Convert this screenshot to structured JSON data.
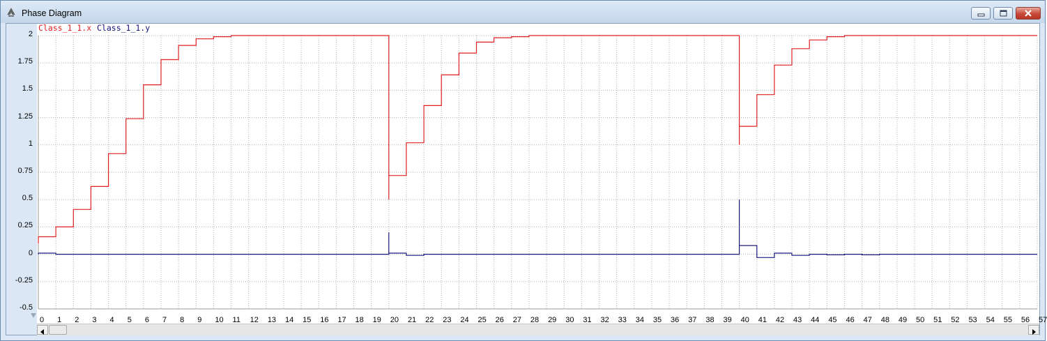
{
  "window": {
    "title": "Phase Diagram",
    "buttons": {
      "minimize": "minimize",
      "maximize": "maximize",
      "close": "close"
    }
  },
  "legend": {
    "series_x": "Class_1_1.x",
    "series_y": "Class_1_1.y"
  },
  "colors": {
    "series_x": "#e02020",
    "series_y": "#1a1a80",
    "grid": "#b0b0b0"
  },
  "chart_data": {
    "type": "line",
    "step": true,
    "ylim": [
      -0.5,
      2
    ],
    "xlim": [
      0,
      57
    ],
    "grid": true,
    "legend_position": "top-left",
    "yticks": [
      "2",
      "1.75",
      "1.5",
      "1.25",
      "1",
      "0.75",
      "0.5",
      "0.25",
      "0",
      "-0.25",
      "-0.5"
    ],
    "xticks": [
      "0",
      "1",
      "2",
      "3",
      "4",
      "5",
      "6",
      "7",
      "8",
      "9",
      "10",
      "11",
      "12",
      "13",
      "14",
      "15",
      "16",
      "17",
      "18",
      "19",
      "20",
      "21",
      "22",
      "23",
      "24",
      "25",
      "26",
      "27",
      "28",
      "29",
      "30",
      "31",
      "32",
      "33",
      "34",
      "35",
      "36",
      "37",
      "38",
      "39",
      "40",
      "41",
      "42",
      "43",
      "44",
      "45",
      "46",
      "47",
      "48",
      "49",
      "50",
      "51",
      "52",
      "53",
      "54",
      "55",
      "56",
      "57"
    ],
    "series": [
      {
        "name": "Class_1_1.x",
        "points": [
          [
            0,
            0.1
          ],
          [
            0,
            0.16
          ],
          [
            1,
            0.16
          ],
          [
            1,
            0.25
          ],
          [
            2,
            0.25
          ],
          [
            2,
            0.41
          ],
          [
            3,
            0.41
          ],
          [
            3,
            0.62
          ],
          [
            4,
            0.62
          ],
          [
            4,
            0.92
          ],
          [
            5,
            0.92
          ],
          [
            5,
            1.24
          ],
          [
            6,
            1.24
          ],
          [
            6,
            1.55
          ],
          [
            7,
            1.55
          ],
          [
            7,
            1.78
          ],
          [
            8,
            1.78
          ],
          [
            8,
            1.91
          ],
          [
            9,
            1.91
          ],
          [
            9,
            1.97
          ],
          [
            10,
            1.97
          ],
          [
            10,
            1.99
          ],
          [
            11,
            1.99
          ],
          [
            11,
            2.0
          ],
          [
            20,
            2.0
          ],
          [
            20,
            0.5
          ],
          [
            20,
            0.72
          ],
          [
            21,
            0.72
          ],
          [
            21,
            1.02
          ],
          [
            22,
            1.02
          ],
          [
            22,
            1.36
          ],
          [
            23,
            1.36
          ],
          [
            23,
            1.64
          ],
          [
            24,
            1.64
          ],
          [
            24,
            1.84
          ],
          [
            25,
            1.84
          ],
          [
            25,
            1.94
          ],
          [
            26,
            1.94
          ],
          [
            26,
            1.98
          ],
          [
            27,
            1.98
          ],
          [
            27,
            1.99
          ],
          [
            28,
            1.99
          ],
          [
            28,
            2.0
          ],
          [
            40,
            2.0
          ],
          [
            40,
            1.0
          ],
          [
            40,
            1.17
          ],
          [
            41,
            1.17
          ],
          [
            41,
            1.46
          ],
          [
            42,
            1.46
          ],
          [
            42,
            1.73
          ],
          [
            43,
            1.73
          ],
          [
            43,
            1.88
          ],
          [
            44,
            1.88
          ],
          [
            44,
            1.96
          ],
          [
            45,
            1.96
          ],
          [
            45,
            1.99
          ],
          [
            46,
            1.99
          ],
          [
            46,
            2.0
          ],
          [
            57,
            2.0
          ]
        ]
      },
      {
        "name": "Class_1_1.y",
        "points": [
          [
            0,
            0.0
          ],
          [
            0,
            0.01
          ],
          [
            1,
            0.01
          ],
          [
            1,
            0.0
          ],
          [
            20,
            0.0
          ],
          [
            20,
            0.2
          ],
          [
            20,
            0.01
          ],
          [
            21,
            0.01
          ],
          [
            21,
            -0.01
          ],
          [
            22,
            -0.01
          ],
          [
            22,
            0.0
          ],
          [
            40,
            0.0
          ],
          [
            40,
            0.5
          ],
          [
            40,
            0.08
          ],
          [
            41,
            0.08
          ],
          [
            41,
            -0.03
          ],
          [
            42,
            -0.03
          ],
          [
            42,
            0.01
          ],
          [
            43,
            0.01
          ],
          [
            43,
            -0.01
          ],
          [
            44,
            -0.01
          ],
          [
            44,
            0.0
          ],
          [
            45,
            0.0
          ],
          [
            45,
            -0.005
          ],
          [
            46,
            -0.005
          ],
          [
            46,
            0.0
          ],
          [
            47,
            0.0
          ],
          [
            47,
            -0.005
          ],
          [
            48,
            -0.005
          ],
          [
            48,
            0.0
          ],
          [
            57,
            0.0
          ]
        ]
      }
    ]
  }
}
